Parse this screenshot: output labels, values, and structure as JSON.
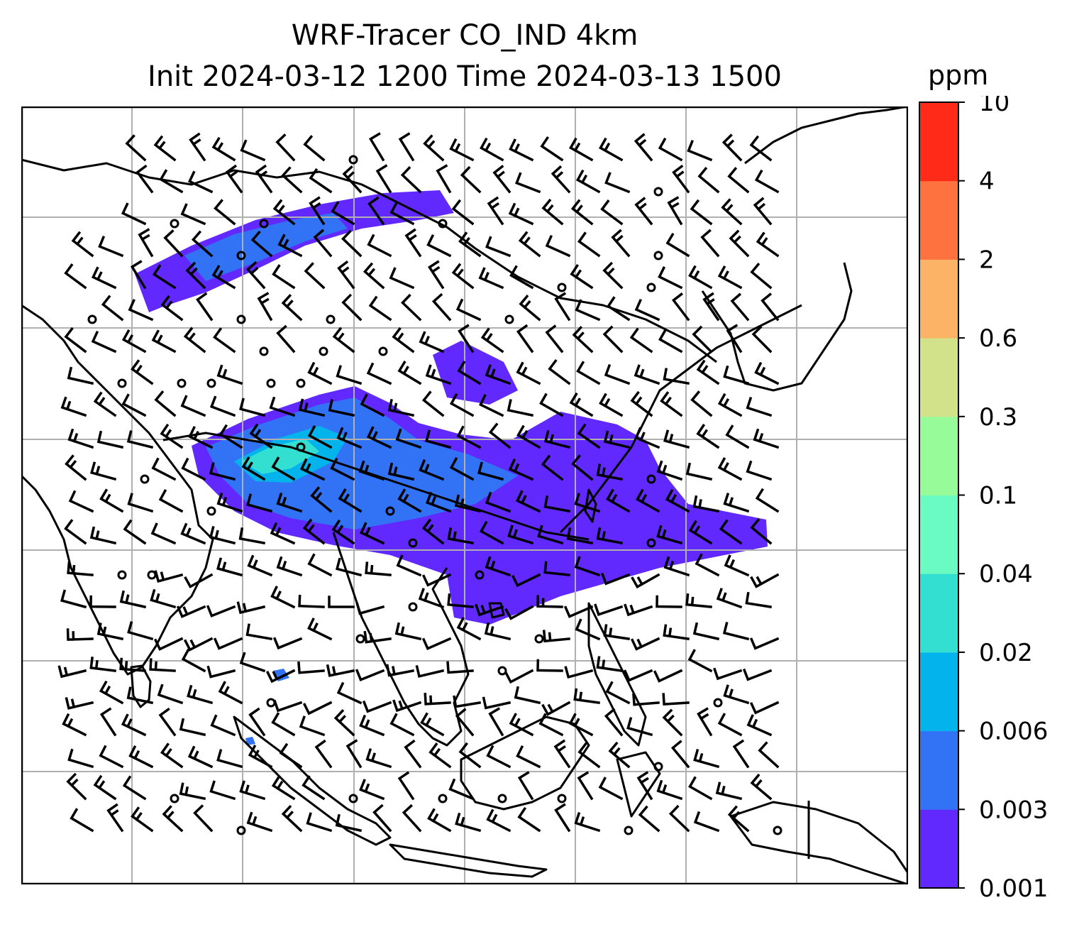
{
  "title_line1": "WRF-Tracer CO_IND 4km",
  "title_line2": "Init 2024-03-12 1200 Time 2024-03-13 1500",
  "colorbar": {
    "unit": "ppm",
    "levels": [
      "0.001",
      "0.003",
      "0.006",
      "0.02",
      "0.04",
      "0.1",
      "0.3",
      "0.6",
      "2",
      "4",
      "10"
    ],
    "colors": [
      "#6229ff",
      "#3272f5",
      "#03b4ec",
      "#33dfd0",
      "#69fbc2",
      "#98fb9a",
      "#d2e28b",
      "#fdb366",
      "#fe7240",
      "#ff2a17"
    ]
  },
  "map": {
    "gridlines": true,
    "coastlines": true,
    "wind_barbs": true,
    "border_color": "#000000",
    "grid_color": "#b0b0b0"
  }
}
